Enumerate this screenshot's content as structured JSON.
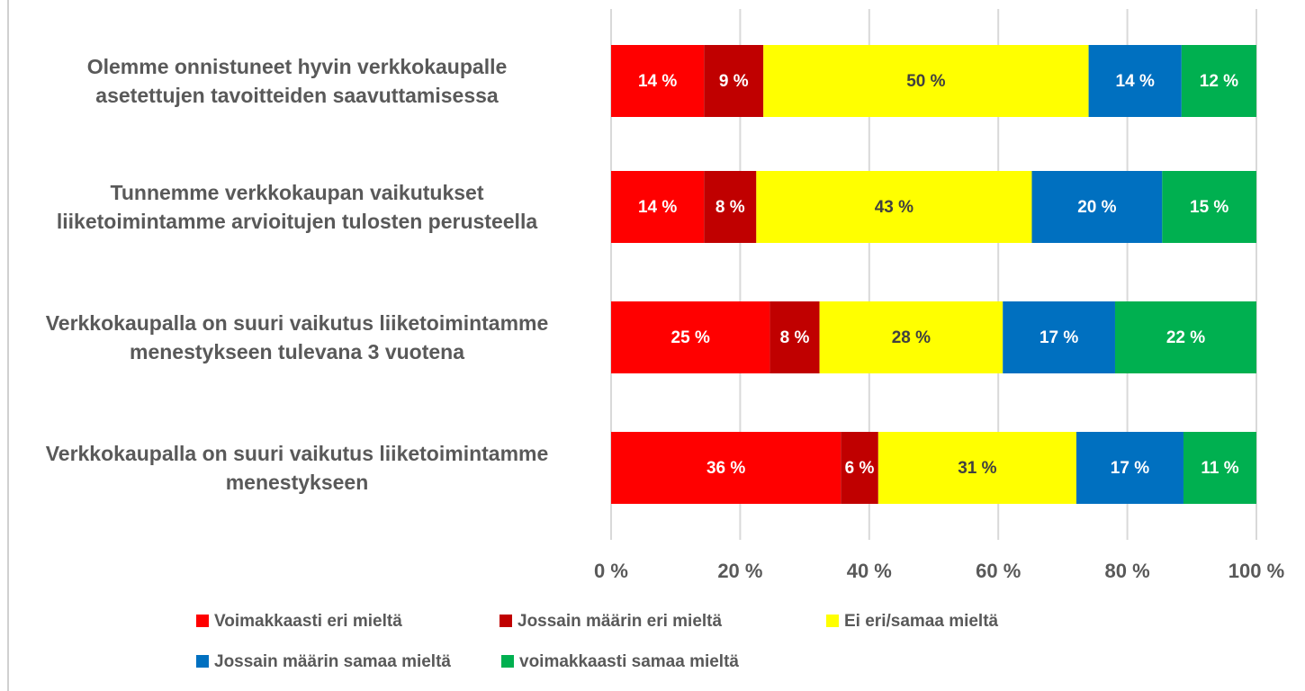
{
  "chart_data": {
    "type": "stacked-bar-horizontal",
    "categories": [
      "Olemme onnistuneet hyvin verkkokaupalle\nasetettujen tavoitteiden saavuttamisessa",
      "Tunnemme verkkokaupan vaikutukset\nliiketoimintamme arvioitujen tulosten perusteella",
      "Verkkokaupalla on suuri vaikutus liiketoimintamme\nmenestykseen tulevana 3 vuotena",
      "Verkkokaupalla on suuri vaikutus liiketoimintamme\nmenestykseen"
    ],
    "series": [
      {
        "name": "Voimakkaasti eri mieltä",
        "color": "#ff0000",
        "label_color": "#ffffff",
        "values": [
          14.4,
          14.4,
          24.6,
          35.6
        ],
        "value_labels": [
          "14 %",
          "14 %",
          "25 %",
          "36 %"
        ]
      },
      {
        "name": "Jossain määrin eri mieltä",
        "color": "#c00000",
        "label_color": "#ffffff",
        "values": [
          9.2,
          8.1,
          7.7,
          5.8
        ],
        "value_labels": [
          "9 %",
          "8 %",
          "8 %",
          "6 %"
        ]
      },
      {
        "name": "Ei eri/samaa mieltä",
        "color": "#ffff00",
        "label_color": "#404040",
        "values": [
          50.4,
          42.7,
          28.4,
          30.7
        ],
        "value_labels": [
          "50 %",
          "43 %",
          "28 %",
          "31 %"
        ]
      },
      {
        "name": "Jossain määrin samaa mieltä",
        "color": "#0070c0",
        "label_color": "#ffffff",
        "values": [
          14.4,
          20.2,
          17.4,
          16.6
        ],
        "value_labels": [
          "14 %",
          "20 %",
          "17 %",
          "17 %"
        ]
      },
      {
        "name": "voimakkaasti samaa mieltä",
        "color": "#00b050",
        "label_color": "#ffffff",
        "values": [
          11.6,
          14.6,
          21.9,
          11.3
        ],
        "value_labels": [
          "12 %",
          "15 %",
          "22 %",
          "11 %"
        ]
      }
    ],
    "xlim": [
      0,
      100
    ],
    "xticks": [
      {
        "value": 0,
        "label": "0 %"
      },
      {
        "value": 20,
        "label": "20 %"
      },
      {
        "value": 40,
        "label": "40 %"
      },
      {
        "value": 60,
        "label": "60 %"
      },
      {
        "value": 80,
        "label": "80 %"
      },
      {
        "value": 100,
        "label": "100 %"
      }
    ],
    "grid": true,
    "legend": "bottom"
  }
}
